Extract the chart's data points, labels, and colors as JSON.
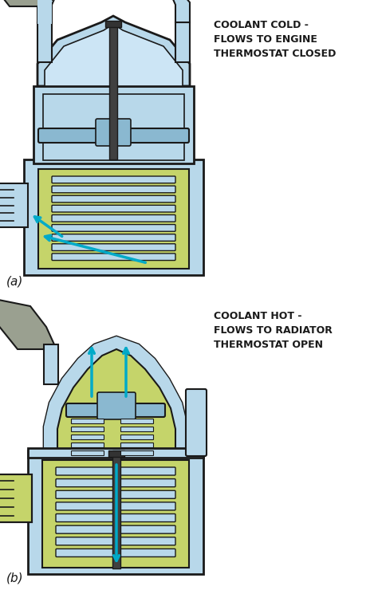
{
  "bg_color": "#ffffff",
  "title_a": "COOLANT COLD -\nFLOWS TO ENGINE\nTHERMOSTAT CLOSED",
  "title_b": "COOLANT HOT -\nFLOWS TO RADIATOR\nTHERMOSTAT OPEN",
  "label_a": "(a)",
  "label_b": "(b)",
  "color_light_blue": "#b8d8ea",
  "color_green": "#c5d46a",
  "color_gray": "#9aA090",
  "color_dark": "#1a1a1a",
  "color_cyan": "#00aac8",
  "color_white": "#ffffff",
  "color_mid_blue": "#8ab8d0",
  "color_stem": "#404040",
  "fig_width": 4.74,
  "fig_height": 7.4,
  "dpi": 100
}
